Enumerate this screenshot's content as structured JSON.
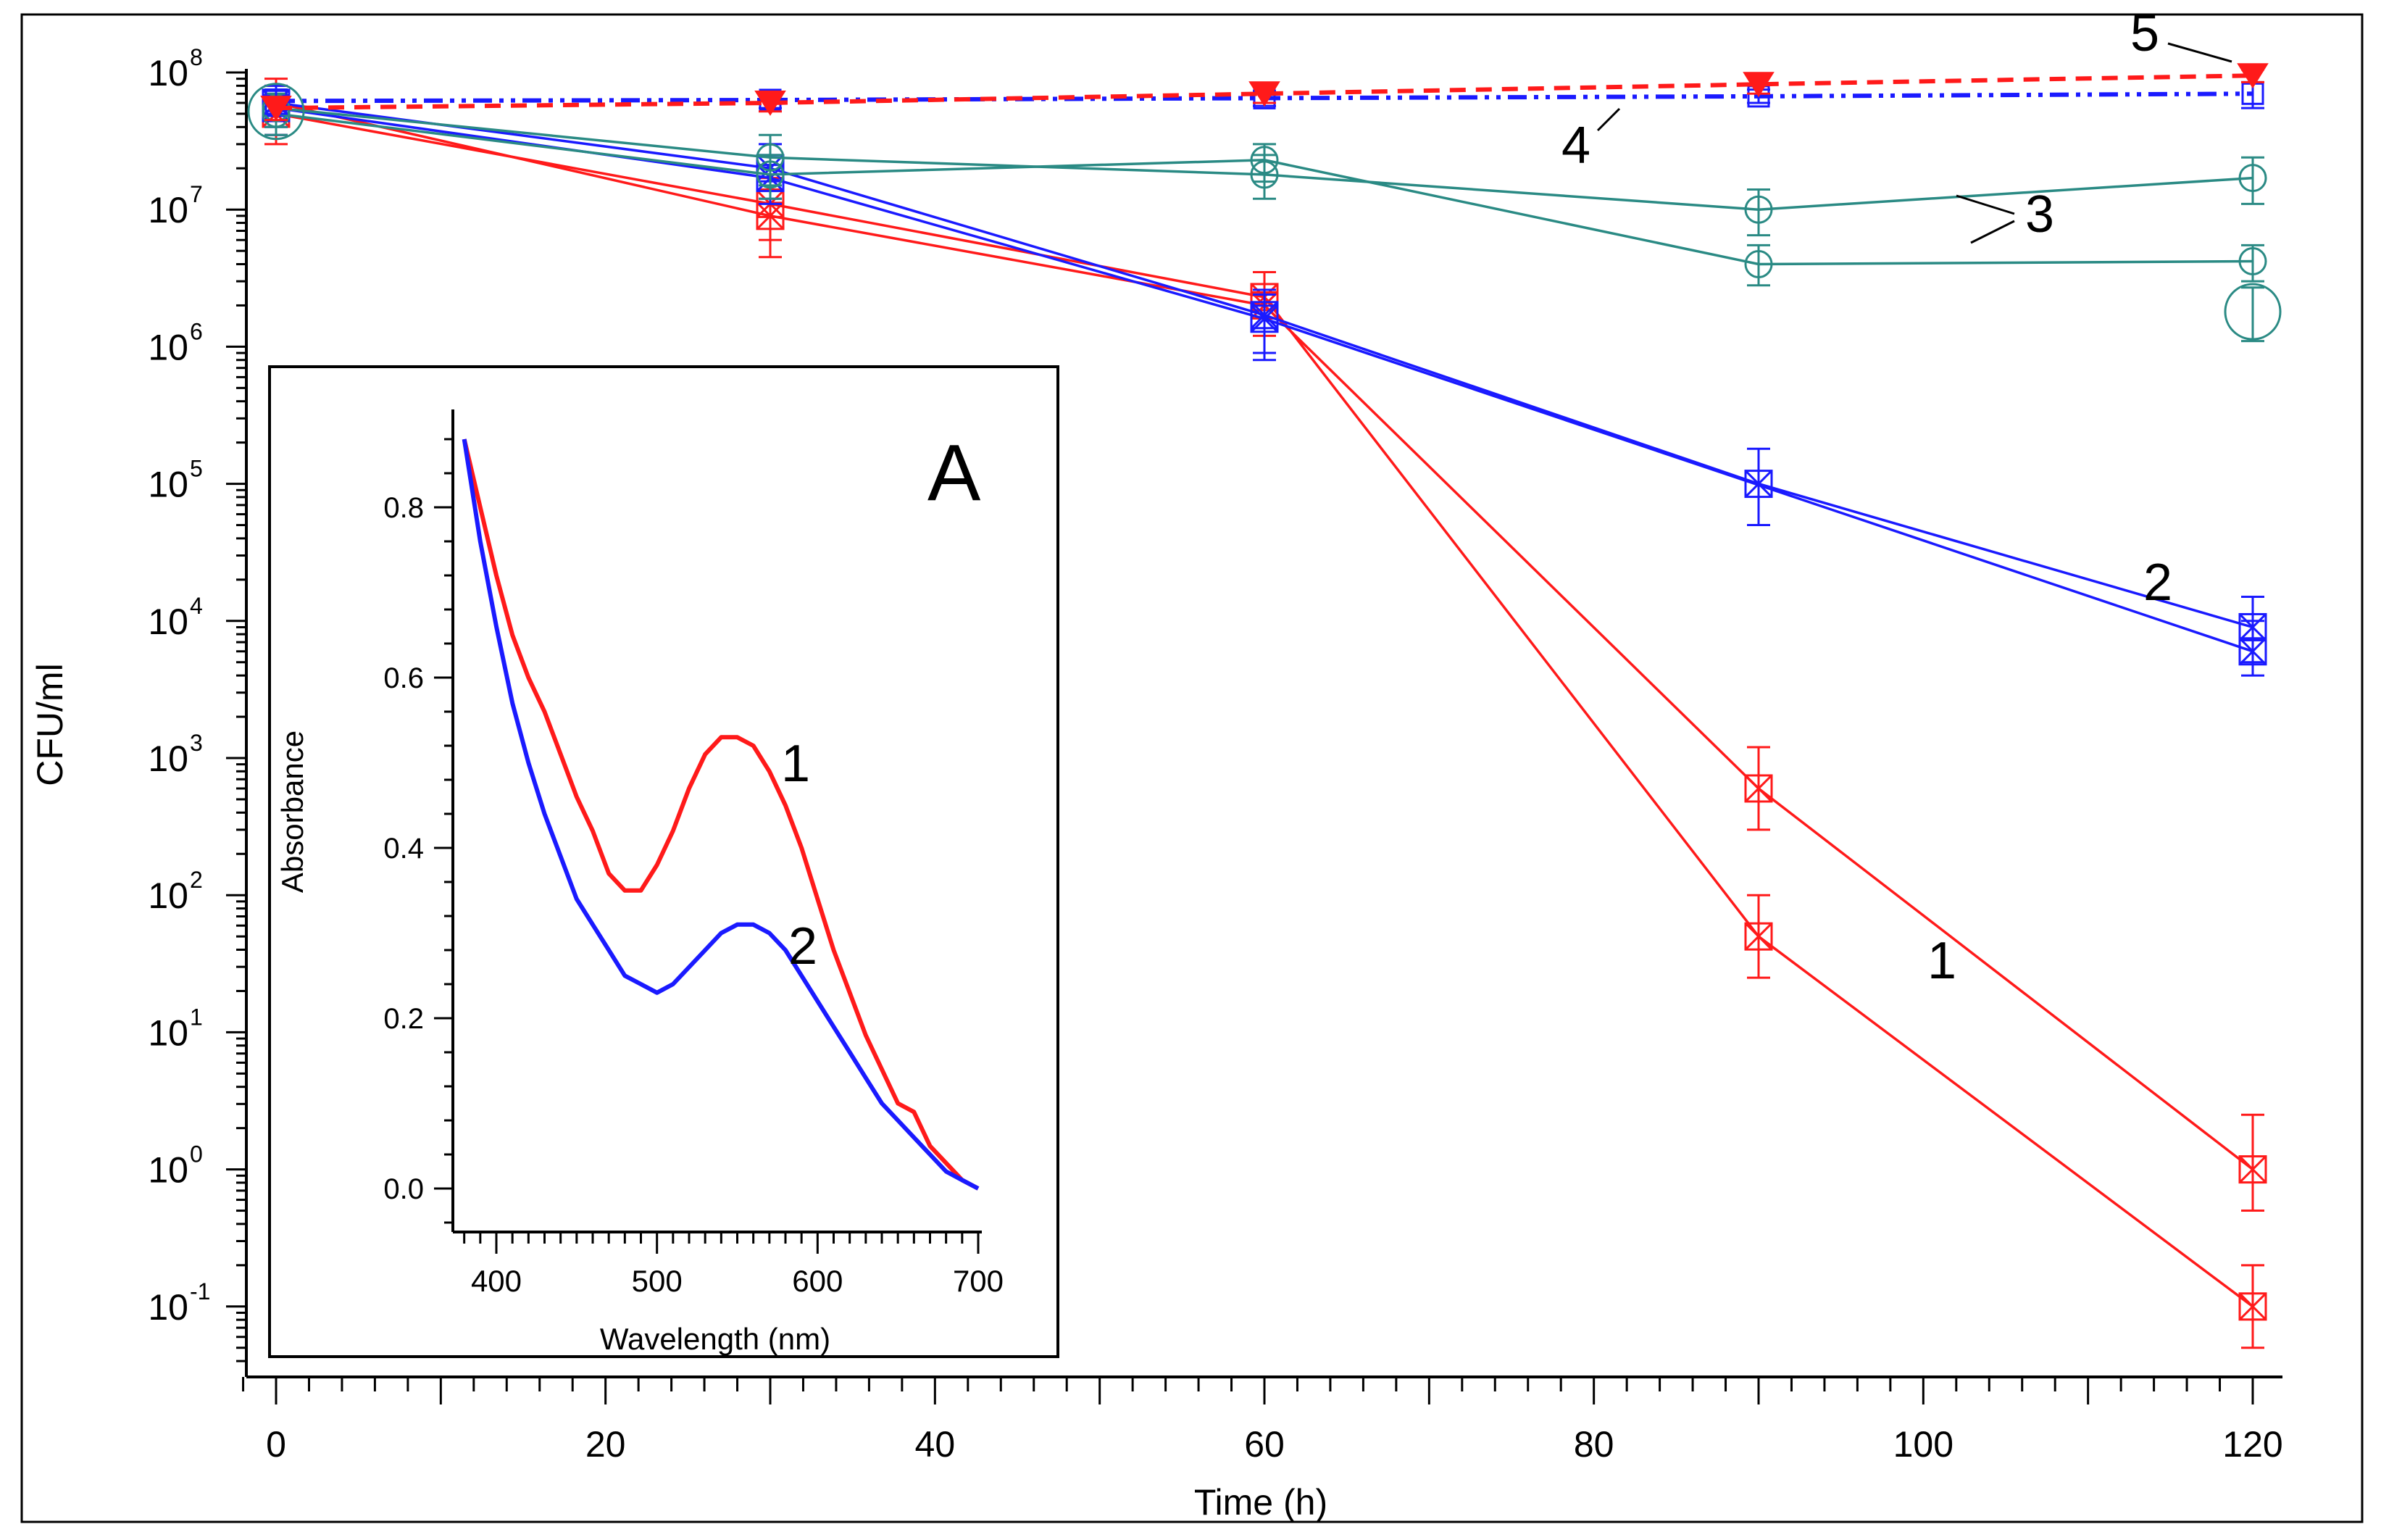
{
  "chart_data": [
    {
      "type": "line",
      "title": "",
      "xlabel": "Time (h)",
      "ylabel": "CFU/ml",
      "y_scale": "log",
      "xlim": [
        -2,
        120
      ],
      "ylim": [
        0.04,
        100000000
      ],
      "x_ticks": [
        "0",
        "20",
        "40",
        "60",
        "80",
        "100",
        "120"
      ],
      "y_ticks": [
        {
          "base": "10",
          "exp": "8"
        },
        {
          "base": "10",
          "exp": "7"
        },
        {
          "base": "10",
          "exp": "6"
        },
        {
          "base": "10",
          "exp": "5"
        },
        {
          "base": "10",
          "exp": "4"
        },
        {
          "base": "10",
          "exp": "3"
        },
        {
          "base": "10",
          "exp": "2"
        },
        {
          "base": "10",
          "exp": "1"
        },
        {
          "base": "10",
          "exp": "0"
        },
        {
          "base": "10",
          "exp": "-1"
        }
      ],
      "grid": false,
      "colors": {
        "red": "#ff1a1a",
        "blue": "#1a1aff",
        "teal": "#2a8a84"
      },
      "series": [
        {
          "label": "1",
          "color": "#ff1a1a",
          "style": "solid",
          "marker": "x-box",
          "x": [
            0,
            30,
            60,
            90,
            120
          ],
          "y": [
            60000000,
            9000000,
            2000000,
            600,
            1
          ],
          "err_lo": [
            35000000,
            4500000,
            900000,
            300,
            0.5
          ],
          "err_hi": [
            90000000,
            14000000,
            3500000,
            1200,
            2.5
          ]
        },
        {
          "label": "1",
          "color": "#ff1a1a",
          "style": "solid",
          "marker": "x-box",
          "x": [
            0,
            30,
            60,
            90,
            120
          ],
          "y": [
            50000000,
            11000000,
            2300000,
            50,
            0.1
          ],
          "err_lo": [
            30000000,
            6000000,
            1200000,
            25,
            0.05
          ],
          "err_hi": [
            80000000,
            17000000,
            3500000,
            100,
            0.2
          ]
        },
        {
          "label": "2",
          "color": "#1a1aff",
          "style": "solid",
          "marker": "x-box",
          "x": [
            0,
            30,
            60,
            90,
            120
          ],
          "y": [
            60000000,
            20000000,
            1700000,
            100000,
            9000
          ],
          "err_lo": [
            40000000,
            12000000,
            900000,
            50000,
            5000
          ],
          "err_hi": [
            80000000,
            30000000,
            2600000,
            180000,
            15000
          ]
        },
        {
          "label": "2",
          "color": "#1a1aff",
          "style": "solid",
          "marker": "x-box",
          "x": [
            0,
            30,
            60,
            120
          ],
          "y": [
            55000000,
            17000000,
            1600000,
            6000
          ],
          "err_lo": [
            35000000,
            11000000,
            800000,
            4000
          ],
          "err_hi": [
            75000000,
            25000000,
            2400000,
            10000
          ]
        },
        {
          "label": "3",
          "color": "#2a8a84",
          "style": "solid",
          "marker": "circle",
          "x": [
            0,
            30,
            60,
            90,
            120
          ],
          "y": [
            55000000,
            24000000,
            18000000,
            10000000,
            17000000
          ],
          "err_lo": [
            40000000,
            15000000,
            12000000,
            6500000,
            11000000
          ],
          "err_hi": [
            75000000,
            35000000,
            25000000,
            14000000,
            24000000
          ]
        },
        {
          "label": "3",
          "color": "#2a8a84",
          "style": "solid",
          "marker": "circle",
          "x": [
            0,
            30,
            60,
            90,
            120
          ],
          "y": [
            50000000,
            18000000,
            23000000,
            4000000,
            4200000
          ],
          "err_lo": [
            35000000,
            12000000,
            16000000,
            2800000,
            3000000
          ],
          "err_hi": [
            70000000,
            25000000,
            30000000,
            5500000,
            5500000
          ]
        },
        {
          "label": "4",
          "color": "#1a1aff",
          "style": "dashdot",
          "marker": "box",
          "x": [
            0,
            30,
            60,
            90,
            120
          ],
          "y": [
            62000000,
            63000000,
            65000000,
            67000000,
            70000000
          ],
          "err_lo": [
            50000000,
            55000000,
            57000000,
            60000000,
            55000000
          ],
          "err_hi": [
            75000000,
            72000000,
            73000000,
            75000000,
            85000000
          ]
        },
        {
          "label": "5",
          "color": "#ff1a1a",
          "style": "dashed",
          "marker": "triangle",
          "x": [
            0,
            30,
            60,
            90,
            120
          ],
          "y": [
            55000000,
            60000000,
            70000000,
            82000000,
            95000000
          ],
          "err_lo": [
            45000000,
            52000000,
            60000000,
            70000000,
            85000000
          ],
          "err_hi": [
            65000000,
            68000000,
            80000000,
            92000000,
            105000000
          ]
        }
      ],
      "extra_points": [
        {
          "x": 0,
          "y": 52000000,
          "marker": "big-circle",
          "color": "#2a8a84"
        },
        {
          "x": 120,
          "y": 1800000,
          "marker": "big-circle",
          "color": "#2a8a84",
          "err_lo": 1100000,
          "err_hi": 2700000
        }
      ]
    },
    {
      "type": "line",
      "title": "",
      "panel_label": "A",
      "xlabel": "Wavelength (nm)",
      "ylabel": "Absorbance",
      "xlim": [
        375,
        705
      ],
      "ylim": [
        -0.05,
        0.9
      ],
      "x_ticks": [
        "400",
        "500",
        "600",
        "700"
      ],
      "y_ticks": [
        "0.0",
        "0.2",
        "0.4",
        "0.6",
        "0.8"
      ],
      "grid": false,
      "series": [
        {
          "label": "1",
          "color": "#ff1a1a",
          "x": [
            380,
            390,
            400,
            410,
            420,
            430,
            440,
            450,
            460,
            470,
            480,
            490,
            500,
            510,
            520,
            530,
            540,
            550,
            560,
            570,
            580,
            590,
            600,
            610,
            620,
            630,
            640,
            650,
            660,
            670,
            680,
            690,
            700
          ],
          "y": [
            0.88,
            0.8,
            0.72,
            0.65,
            0.6,
            0.56,
            0.51,
            0.46,
            0.42,
            0.37,
            0.35,
            0.35,
            0.38,
            0.42,
            0.47,
            0.51,
            0.53,
            0.53,
            0.52,
            0.49,
            0.45,
            0.4,
            0.34,
            0.28,
            0.23,
            0.18,
            0.14,
            0.1,
            0.09,
            0.05,
            0.03,
            0.01,
            0.0
          ]
        },
        {
          "label": "2",
          "color": "#1a1aff",
          "x": [
            380,
            390,
            400,
            410,
            420,
            430,
            440,
            450,
            460,
            470,
            480,
            490,
            500,
            510,
            520,
            530,
            540,
            550,
            560,
            570,
            580,
            590,
            600,
            610,
            620,
            630,
            640,
            650,
            660,
            670,
            680,
            690,
            700
          ],
          "y": [
            0.88,
            0.76,
            0.66,
            0.57,
            0.5,
            0.44,
            0.39,
            0.34,
            0.31,
            0.28,
            0.25,
            0.24,
            0.23,
            0.24,
            0.26,
            0.28,
            0.3,
            0.31,
            0.31,
            0.3,
            0.28,
            0.25,
            0.22,
            0.19,
            0.16,
            0.13,
            0.1,
            0.08,
            0.06,
            0.04,
            0.02,
            0.01,
            0.0
          ]
        }
      ]
    }
  ]
}
